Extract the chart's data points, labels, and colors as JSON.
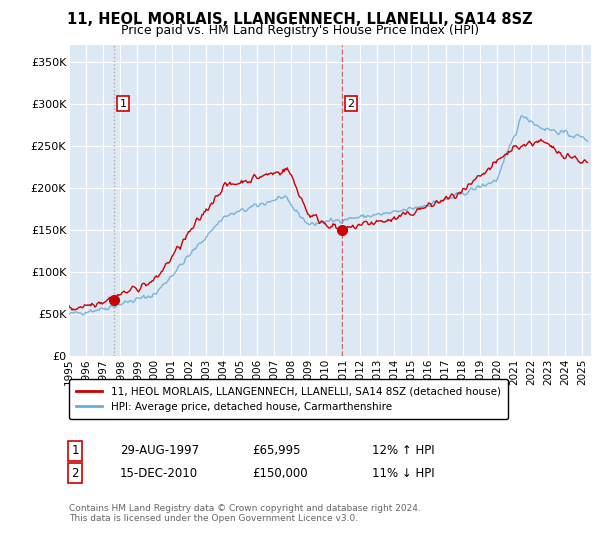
{
  "title": "11, HEOL MORLAIS, LLANGENNECH, LLANELLI, SA14 8SZ",
  "subtitle": "Price paid vs. HM Land Registry's House Price Index (HPI)",
  "title_fontsize": 10.5,
  "subtitle_fontsize": 9,
  "background_color": "#ffffff",
  "plot_bg_color": "#dce9f5",
  "grid_color": "#ffffff",
  "ylabel_ticks": [
    "£0",
    "£50K",
    "£100K",
    "£150K",
    "£200K",
    "£250K",
    "£300K",
    "£350K"
  ],
  "ylabel_values": [
    0,
    50000,
    100000,
    150000,
    200000,
    250000,
    300000,
    350000
  ],
  "ylim": [
    0,
    370000
  ],
  "xlim_start": 1995.0,
  "xlim_end": 2025.5,
  "hpi_color": "#6baed6",
  "price_color": "#cc0000",
  "marker_color": "#cc0000",
  "dashed_line_color1": "#aaaaaa",
  "dashed_line_color2": "#e06060",
  "purchase1_x": 1997.65,
  "purchase1_y": 65995,
  "purchase1_label": "1",
  "purchase1_date": "29-AUG-1997",
  "purchase1_price": "£65,995",
  "purchase1_hpi": "12% ↑ HPI",
  "purchase2_x": 2010.96,
  "purchase2_y": 150000,
  "purchase2_label": "2",
  "purchase2_date": "15-DEC-2010",
  "purchase2_price": "£150,000",
  "purchase2_hpi": "11% ↓ HPI",
  "legend_label1": "11, HEOL MORLAIS, LLANGENNECH, LLANELLI, SA14 8SZ (detached house)",
  "legend_label2": "HPI: Average price, detached house, Carmarthenshire",
  "footer1": "Contains HM Land Registry data © Crown copyright and database right 2024.",
  "footer2": "This data is licensed under the Open Government Licence v3.0.",
  "xtick_years": [
    1995,
    1996,
    1997,
    1998,
    1999,
    2000,
    2001,
    2002,
    2003,
    2004,
    2005,
    2006,
    2007,
    2008,
    2009,
    2010,
    2011,
    2012,
    2013,
    2014,
    2015,
    2016,
    2017,
    2018,
    2019,
    2020,
    2021,
    2022,
    2023,
    2024,
    2025
  ]
}
